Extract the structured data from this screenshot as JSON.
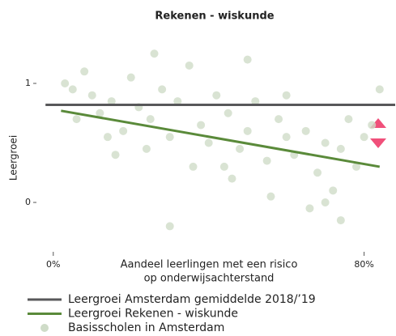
{
  "chart_data": {
    "type": "scatter",
    "title": "Rekenen - wiskunde",
    "ylabel": "Leergroei",
    "xlabel": [
      "Aandeel leerlingen met een risico",
      "op onderwijsachterstand"
    ],
    "xlim": [
      -6,
      88
    ],
    "ylim": [
      -0.34,
      1.33
    ],
    "xticks": [
      {
        "value": 0,
        "label": "0%"
      },
      {
        "value": 80,
        "label": "80%"
      }
    ],
    "yticks": [
      0,
      1
    ],
    "series": [
      {
        "name": "Leergroei Amsterdam gemiddelde 2018/’19",
        "kind": "line",
        "color": "#58585a",
        "x": [
          -2,
          88
        ],
        "values": [
          0.82,
          0.82
        ]
      },
      {
        "name": "Leergroei Rekenen - wiskunde",
        "kind": "line",
        "color": "#5a8a3a",
        "x": [
          2,
          84
        ],
        "values": [
          0.77,
          0.3
        ]
      },
      {
        "name": "Basisscholen in Amsterdam",
        "kind": "points",
        "color": "#cfdcc8",
        "x": [
          5,
          3,
          8,
          10,
          12,
          15,
          18,
          20,
          22,
          25,
          28,
          30,
          32,
          35,
          38,
          40,
          42,
          45,
          48,
          50,
          52,
          55,
          58,
          60,
          62,
          65,
          68,
          70,
          72,
          74,
          76,
          78,
          80,
          82,
          84,
          6,
          14,
          24,
          36,
          46,
          56,
          66,
          74,
          30,
          50,
          26,
          60,
          44,
          16,
          70
        ],
        "values": [
          0.95,
          1.0,
          1.1,
          0.9,
          0.75,
          0.85,
          0.6,
          1.05,
          0.8,
          0.7,
          0.95,
          0.55,
          0.85,
          1.15,
          0.65,
          0.5,
          0.9,
          0.75,
          0.45,
          0.6,
          0.85,
          0.35,
          0.7,
          0.55,
          0.4,
          0.6,
          0.25,
          0.5,
          0.1,
          0.45,
          0.7,
          0.3,
          0.55,
          0.65,
          0.95,
          0.7,
          0.55,
          0.45,
          0.3,
          0.2,
          0.05,
          -0.05,
          -0.15,
          -0.2,
          1.2,
          1.25,
          0.9,
          0.3,
          0.4,
          0.0
        ]
      }
    ]
  }
}
